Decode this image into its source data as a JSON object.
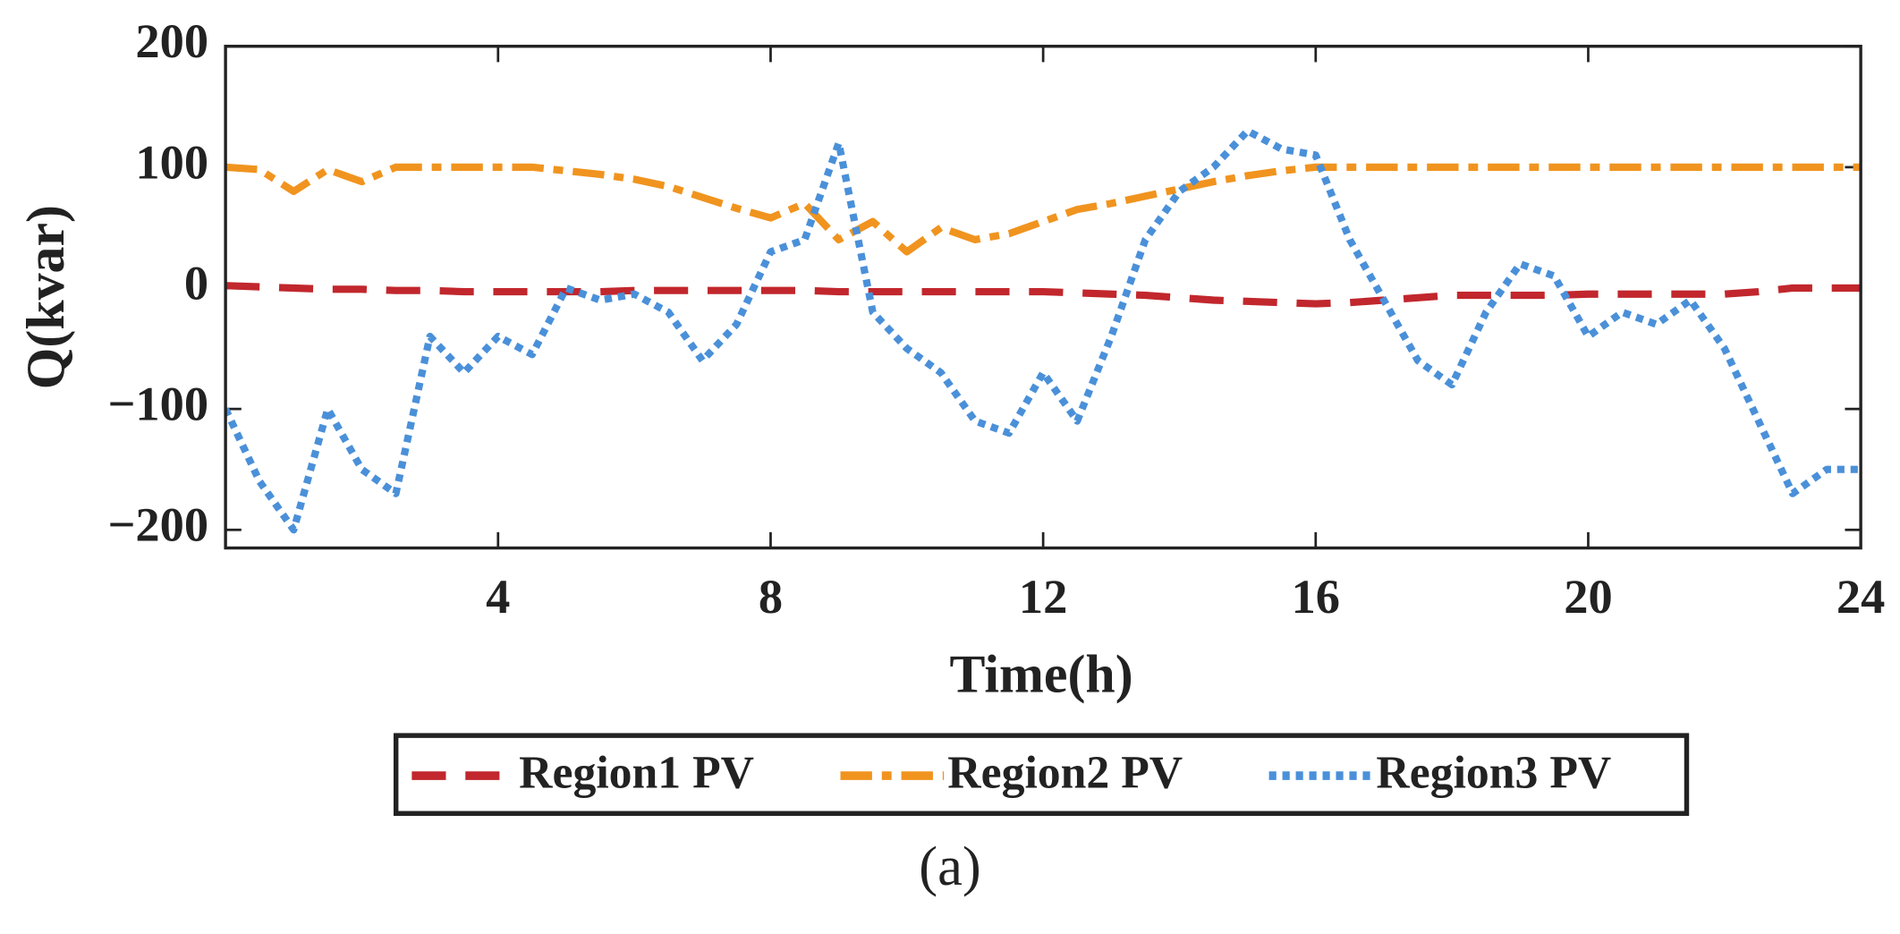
{
  "chart_data": {
    "type": "line",
    "xlabel": "Time(h)",
    "ylabel": "Q(kvar)",
    "caption": "(a)",
    "xlim": [
      0,
      24
    ],
    "xticks": [
      4,
      8,
      12,
      16,
      20,
      24
    ],
    "ylim": [
      -215,
      200
    ],
    "yticks": [
      {
        "value": -200,
        "label": "−200"
      },
      {
        "value": -100,
        "label": "−100"
      },
      0,
      100,
      200
    ],
    "x": [
      0,
      0.5,
      1,
      1.5,
      2,
      2.5,
      3,
      3.5,
      4,
      4.5,
      5,
      5.5,
      6,
      6.5,
      7,
      7.5,
      8,
      8.5,
      9,
      9.5,
      10,
      10.5,
      11,
      11.5,
      12,
      12.5,
      13,
      13.5,
      14,
      14.5,
      15,
      15.5,
      16,
      16.5,
      17,
      17.5,
      18,
      18.5,
      19,
      19.5,
      20,
      20.5,
      21,
      21.5,
      22,
      22.5,
      23,
      23.5,
      24
    ],
    "series": [
      {
        "name": "Region1 PV",
        "color": "#c1272d",
        "dash": "dashed",
        "values": [
          2,
          1,
          0,
          -1,
          -1,
          -2,
          -2,
          -3,
          -3,
          -3,
          -3,
          -3,
          -2,
          -2,
          -2,
          -2,
          -2,
          -2,
          -3,
          -3,
          -3,
          -3,
          -3,
          -3,
          -3,
          -4,
          -5,
          -6,
          -8,
          -10,
          -11,
          -12,
          -13,
          -12,
          -10,
          -8,
          -6,
          -6,
          -6,
          -6,
          -5,
          -5,
          -5,
          -5,
          -5,
          -3,
          0,
          0,
          0
        ]
      },
      {
        "name": "Region2 PV",
        "color": "#f0941f",
        "dash": "dashdot",
        "values": [
          100,
          98,
          80,
          98,
          88,
          100,
          100,
          100,
          100,
          100,
          97,
          94,
          90,
          84,
          75,
          66,
          58,
          70,
          40,
          55,
          30,
          50,
          40,
          45,
          55,
          65,
          70,
          76,
          82,
          88,
          93,
          97,
          100,
          100,
          100,
          100,
          100,
          100,
          100,
          100,
          100,
          100,
          100,
          100,
          100,
          100,
          100,
          100,
          100
        ]
      },
      {
        "name": "Region3 PV",
        "color": "#4a90d9",
        "dash": "dotted",
        "values": [
          -100,
          -160,
          -200,
          -100,
          -150,
          -170,
          -40,
          -70,
          -40,
          -55,
          0,
          -10,
          -5,
          -20,
          -60,
          -30,
          30,
          40,
          120,
          -20,
          -50,
          -70,
          -110,
          -120,
          -70,
          -110,
          -40,
          40,
          80,
          100,
          130,
          115,
          110,
          40,
          -10,
          -60,
          -80,
          -20,
          20,
          10,
          -40,
          -20,
          -30,
          -10,
          -50,
          -110,
          -170,
          -150,
          -150
        ]
      }
    ]
  }
}
